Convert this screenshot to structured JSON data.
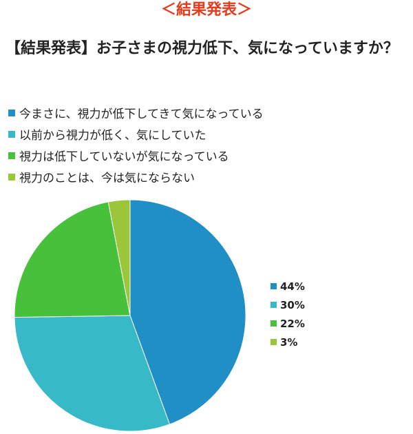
{
  "header": {
    "label": "＜結果発表＞",
    "color": "#e53a1c"
  },
  "question": "【結果発表】お子さまの視力低下、気になっていますか？",
  "chart_data": {
    "type": "pie",
    "title": "【結果発表】お子さまの視力低下、気になっていますか？",
    "slices": [
      {
        "label": "今まさに、視力が低下してきて気になっている",
        "value": 44,
        "percent_label": "44%",
        "color": "#1f8fc6"
      },
      {
        "label": "以前から視力が低く、気にしていた",
        "value": 30,
        "percent_label": "30%",
        "color": "#38b9c8"
      },
      {
        "label": "視力は低下していないが気になっている",
        "value": 22,
        "percent_label": "22%",
        "color": "#47c03b"
      },
      {
        "label": "視力のことは、今は気にならない",
        "value": 3,
        "percent_label": "3%",
        "color": "#9bc63a"
      }
    ],
    "start_angle_deg": 0,
    "direction": "clockwise",
    "legend_position": "top-left",
    "percent_legend_position": "right"
  }
}
